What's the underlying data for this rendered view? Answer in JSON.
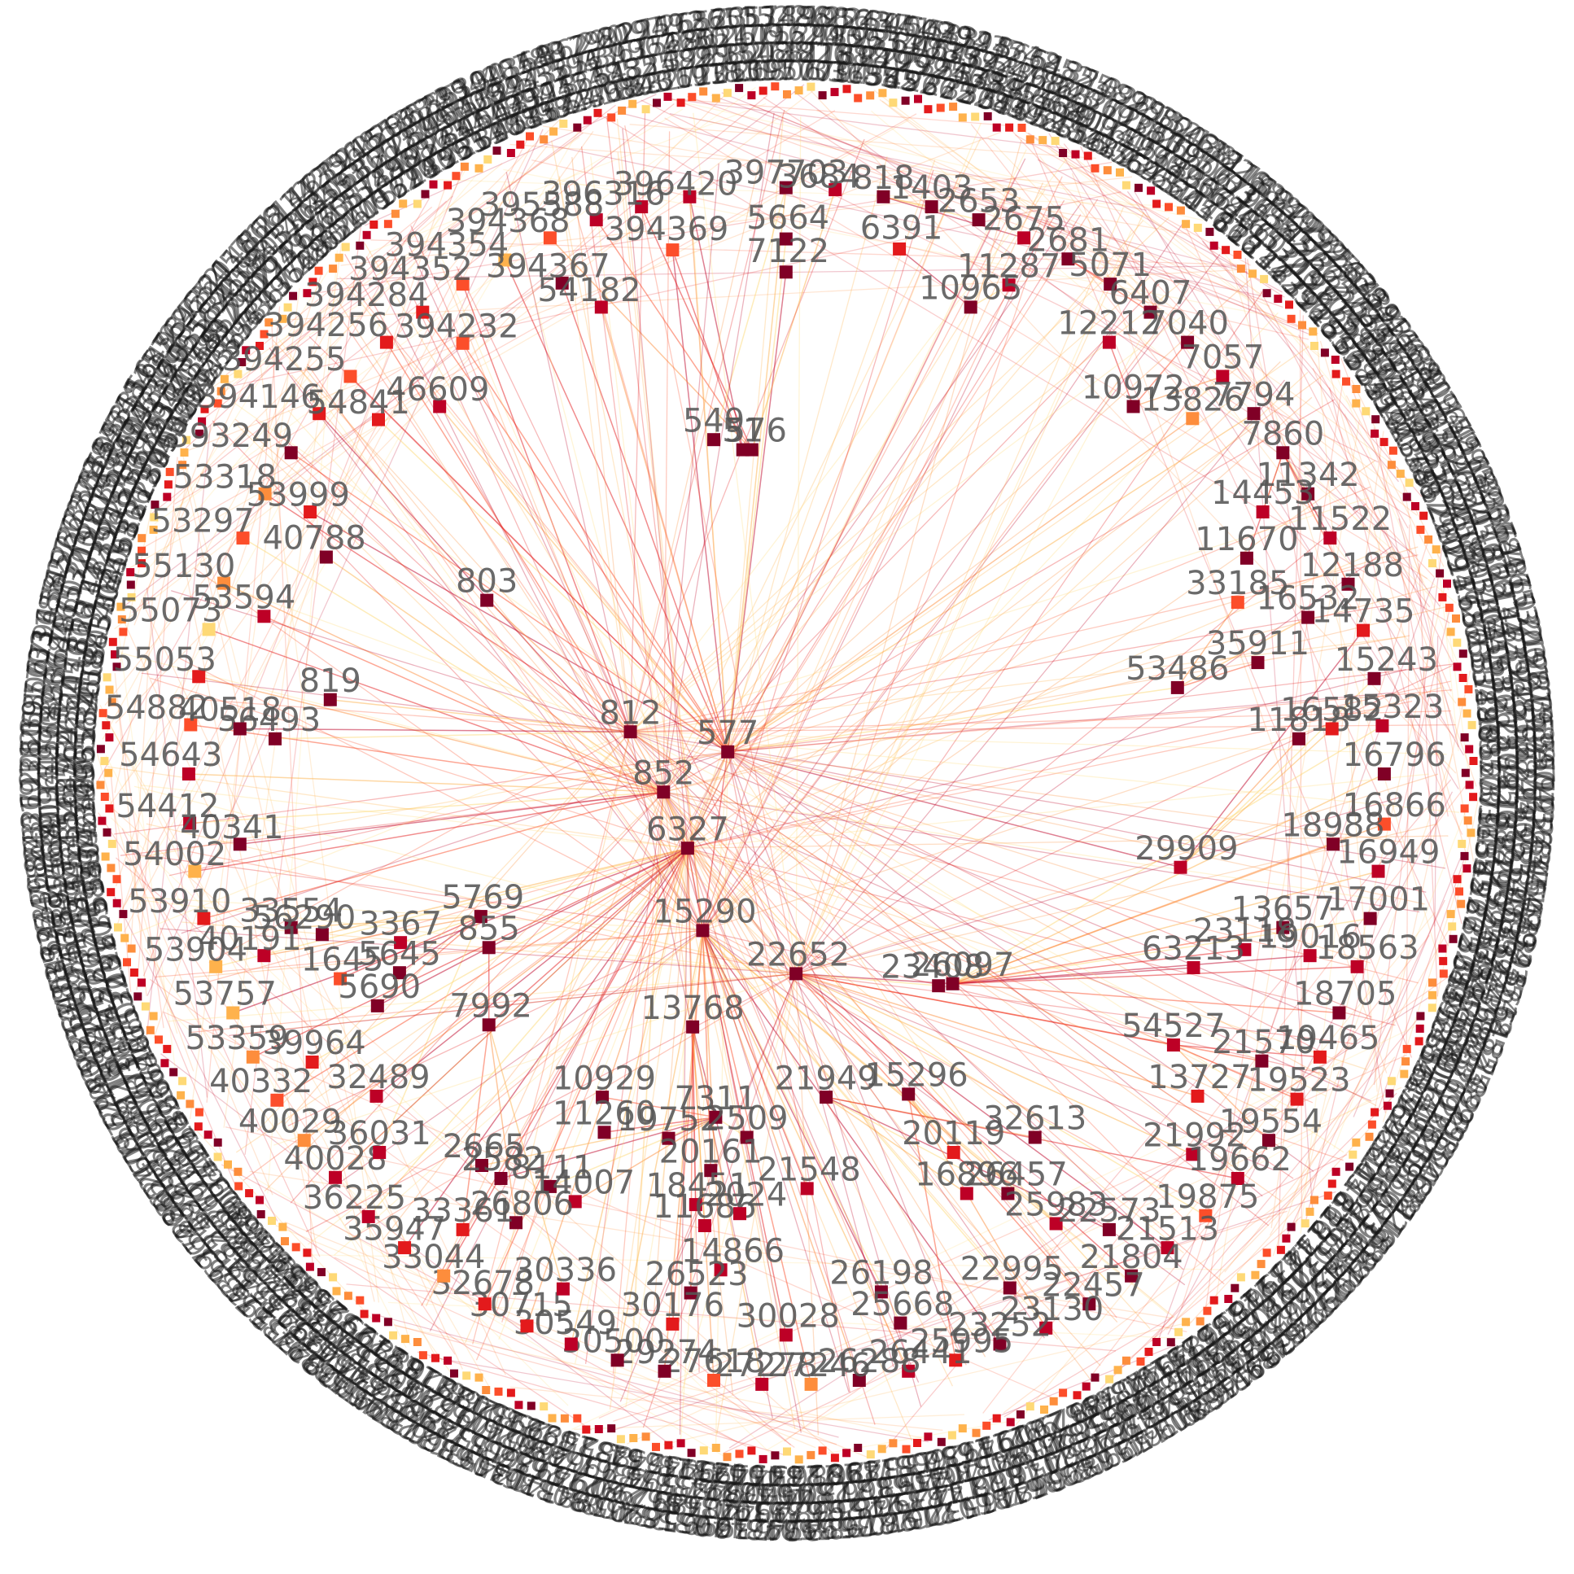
{
  "colors": {
    "node_scale": [
      "#800026",
      "#bd0026",
      "#e31a1c",
      "#fc4e2a",
      "#fd8d3c",
      "#feb24c",
      "#fed976"
    ],
    "edge_scale": [
      "#bd0026",
      "#e31a1c",
      "#fc4e2a",
      "#fd8d3c",
      "#feb24c",
      "#fed976"
    ],
    "label": "#555555",
    "ring_label": "#1a1a1a",
    "background": "#ffffff"
  },
  "layout_style": "radial-circle",
  "hubs": [
    "577",
    "852",
    "6327",
    "15290",
    "812",
    "22652"
  ],
  "nodes": [
    {
      "label": "397703",
      "shade": 0
    },
    {
      "label": "3684",
      "shade": 1
    },
    {
      "label": "818",
      "shade": 0
    },
    {
      "label": "1403",
      "shade": 0
    },
    {
      "label": "2653",
      "shade": 0
    },
    {
      "label": "2675",
      "shade": 1
    },
    {
      "label": "2681",
      "shade": 0
    },
    {
      "label": "5071",
      "shade": 0
    },
    {
      "label": "6407",
      "shade": 0
    },
    {
      "label": "12212",
      "shade": 1
    },
    {
      "label": "7040",
      "shade": 0
    },
    {
      "label": "7057",
      "shade": 1
    },
    {
      "label": "10972",
      "shade": 0
    },
    {
      "label": "13826",
      "shade": 4
    },
    {
      "label": "7794",
      "shade": 0
    },
    {
      "label": "7860",
      "shade": 0
    },
    {
      "label": "11342",
      "shade": 0
    },
    {
      "label": "14453",
      "shade": 1
    },
    {
      "label": "11522",
      "shade": 1
    },
    {
      "label": "11670",
      "shade": 0
    },
    {
      "label": "12188",
      "shade": 0
    },
    {
      "label": "33185",
      "shade": 3
    },
    {
      "label": "16532",
      "shade": 0
    },
    {
      "label": "14735",
      "shade": 2
    },
    {
      "label": "35911",
      "shade": 0
    },
    {
      "label": "53486",
      "shade": 0
    },
    {
      "label": "15243",
      "shade": 0
    },
    {
      "label": "11818",
      "shade": 0
    },
    {
      "label": "16582",
      "shade": 2
    },
    {
      "label": "15323",
      "shade": 1
    },
    {
      "label": "16796",
      "shade": 0
    },
    {
      "label": "16866",
      "shade": 3
    },
    {
      "label": "18988",
      "shade": 0
    },
    {
      "label": "29909",
      "shade": 1
    },
    {
      "label": "16949",
      "shade": 1
    },
    {
      "label": "13657",
      "shade": 0
    },
    {
      "label": "17001",
      "shade": 0
    },
    {
      "label": "23118",
      "shade": 1
    },
    {
      "label": "63213",
      "shade": 1
    },
    {
      "label": "19016",
      "shade": 1
    },
    {
      "label": "18563",
      "shade": 1
    },
    {
      "label": "18705",
      "shade": 0
    },
    {
      "label": "54527",
      "shade": 1
    },
    {
      "label": "21570",
      "shade": 0
    },
    {
      "label": "19465",
      "shade": 2
    },
    {
      "label": "13727",
      "shade": 2
    },
    {
      "label": "19523",
      "shade": 2
    },
    {
      "label": "19554",
      "shade": 0
    },
    {
      "label": "21992",
      "shade": 1
    },
    {
      "label": "19662",
      "shade": 1
    },
    {
      "label": "19875",
      "shade": 3
    },
    {
      "label": "21513",
      "shade": 1
    },
    {
      "label": "21804",
      "shade": 0
    },
    {
      "label": "22457",
      "shade": 0
    },
    {
      "label": "23130",
      "shade": 1
    },
    {
      "label": "22995",
      "shade": 0
    },
    {
      "label": "23252",
      "shade": 0
    },
    {
      "label": "26198",
      "shade": 0
    },
    {
      "label": "25668",
      "shade": 0
    },
    {
      "label": "25995",
      "shade": 2
    },
    {
      "label": "26441",
      "shade": 1
    },
    {
      "label": "26288",
      "shade": 0
    },
    {
      "label": "27246",
      "shade": 4
    },
    {
      "label": "27278",
      "shade": 1
    },
    {
      "label": "27618",
      "shade": 3
    },
    {
      "label": "29274",
      "shade": 0
    },
    {
      "label": "30500",
      "shade": 0
    },
    {
      "label": "30549",
      "shade": 1
    },
    {
      "label": "30715",
      "shade": 2
    },
    {
      "label": "32678",
      "shade": 2
    },
    {
      "label": "33044",
      "shade": 4
    },
    {
      "label": "35947",
      "shade": 2
    },
    {
      "label": "36225",
      "shade": 1
    },
    {
      "label": "40028",
      "shade": 1
    },
    {
      "label": "40029",
      "shade": 4
    },
    {
      "label": "40332",
      "shade": 3
    },
    {
      "label": "53359",
      "shade": 4
    },
    {
      "label": "53757",
      "shade": 5
    },
    {
      "label": "53904",
      "shade": 5
    },
    {
      "label": "53910",
      "shade": 2
    },
    {
      "label": "54002",
      "shade": 5
    },
    {
      "label": "54412",
      "shade": 1
    },
    {
      "label": "54643",
      "shade": 1
    },
    {
      "label": "54882",
      "shade": 3
    },
    {
      "label": "55053",
      "shade": 2
    },
    {
      "label": "55073",
      "shade": 6
    },
    {
      "label": "55130",
      "shade": 4
    },
    {
      "label": "53297",
      "shade": 3
    },
    {
      "label": "53318",
      "shade": 4
    },
    {
      "label": "393249",
      "shade": 0
    },
    {
      "label": "394146",
      "shade": 2
    },
    {
      "label": "394255",
      "shade": 3
    },
    {
      "label": "394256",
      "shade": 2
    },
    {
      "label": "394284",
      "shade": 2
    },
    {
      "label": "394352",
      "shade": 3
    },
    {
      "label": "394354",
      "shade": 5
    },
    {
      "label": "394368",
      "shade": 3
    },
    {
      "label": "395588",
      "shade": 1
    },
    {
      "label": "396316",
      "shade": 1
    },
    {
      "label": "396420",
      "shade": 1
    },
    {
      "label": "394369",
      "shade": 3
    },
    {
      "label": "394367",
      "shade": 0
    },
    {
      "label": "394232",
      "shade": 3
    },
    {
      "label": "54182",
      "shade": 1
    },
    {
      "label": "46609",
      "shade": 1
    },
    {
      "label": "54841",
      "shade": 2
    },
    {
      "label": "53999",
      "shade": 2
    },
    {
      "label": "40788",
      "shade": 0
    },
    {
      "label": "53594",
      "shade": 1
    },
    {
      "label": "5664",
      "shade": 0
    },
    {
      "label": "7122",
      "shade": 0
    },
    {
      "label": "6391",
      "shade": 2
    },
    {
      "label": "11287",
      "shade": 1
    },
    {
      "label": "10965",
      "shade": 0
    },
    {
      "label": "549",
      "shade": 0
    },
    {
      "label": "576",
      "shade": 0
    },
    {
      "label": "51",
      "shade": 0
    },
    {
      "label": "803",
      "shade": 0
    },
    {
      "label": "819",
      "shade": 0
    },
    {
      "label": "56493",
      "shade": 0
    },
    {
      "label": "40518",
      "shade": 0
    },
    {
      "label": "812",
      "shade": 0
    },
    {
      "label": "577",
      "shade": 0
    },
    {
      "label": "852",
      "shade": 0
    },
    {
      "label": "6327",
      "shade": 0
    },
    {
      "label": "40341",
      "shade": 0
    },
    {
      "label": "5769",
      "shade": 0
    },
    {
      "label": "33554",
      "shade": 0
    },
    {
      "label": "56290",
      "shade": 0
    },
    {
      "label": "3367",
      "shade": 1
    },
    {
      "label": "855",
      "shade": 0
    },
    {
      "label": "40191",
      "shade": 1
    },
    {
      "label": "1645",
      "shade": 3
    },
    {
      "label": "5645",
      "shade": 0
    },
    {
      "label": "5690",
      "shade": 0
    },
    {
      "label": "7992",
      "shade": 0
    },
    {
      "label": "39964",
      "shade": 2
    },
    {
      "label": "32489",
      "shade": 1
    },
    {
      "label": "36031",
      "shade": 1
    },
    {
      "label": "15290",
      "shade": 0
    },
    {
      "label": "22652",
      "shade": 0
    },
    {
      "label": "23408",
      "shade": 0
    },
    {
      "label": "26097",
      "shade": 0
    },
    {
      "label": "13768",
      "shade": 0
    },
    {
      "label": "10929",
      "shade": 0
    },
    {
      "label": "11260",
      "shade": 0
    },
    {
      "label": "19752",
      "shade": 0
    },
    {
      "label": "7311",
      "shade": 0
    },
    {
      "label": "2509",
      "shade": 0
    },
    {
      "label": "21949",
      "shade": 0
    },
    {
      "label": "15296",
      "shade": 0
    },
    {
      "label": "32613",
      "shade": 0
    },
    {
      "label": "20119",
      "shade": 2
    },
    {
      "label": "16896",
      "shade": 1
    },
    {
      "label": "26457",
      "shade": 0
    },
    {
      "label": "25983",
      "shade": 1
    },
    {
      "label": "22573",
      "shade": 0
    },
    {
      "label": "2665",
      "shade": 0
    },
    {
      "label": "2582",
      "shade": 0
    },
    {
      "label": "8111",
      "shade": 0
    },
    {
      "label": "14007",
      "shade": 1
    },
    {
      "label": "20161",
      "shade": 0
    },
    {
      "label": "18451",
      "shade": 1
    },
    {
      "label": "11686",
      "shade": 1
    },
    {
      "label": "2024",
      "shade": 1
    },
    {
      "label": "21548",
      "shade": 1
    },
    {
      "label": "26806",
      "shade": 0
    },
    {
      "label": "33361",
      "shade": 2
    },
    {
      "label": "14866",
      "shade": 1
    },
    {
      "label": "30336",
      "shade": 1
    },
    {
      "label": "26523",
      "shade": 0
    },
    {
      "label": "30176",
      "shade": 2
    },
    {
      "label": "30028",
      "shade": 1
    }
  ],
  "edges": [
    [
      "577",
      "394369"
    ],
    [
      "577",
      "394367"
    ],
    [
      "577",
      "394232"
    ],
    [
      "577",
      "54182"
    ],
    [
      "577",
      "46609"
    ],
    [
      "577",
      "54841"
    ],
    [
      "577",
      "53999"
    ],
    [
      "577",
      "394255"
    ],
    [
      "577",
      "393249"
    ],
    [
      "577",
      "396420"
    ],
    [
      "577",
      "397703"
    ],
    [
      "577",
      "5664"
    ],
    [
      "577",
      "7122"
    ],
    [
      "577",
      "394354"
    ],
    [
      "577",
      "394284"
    ],
    [
      "577",
      "13826"
    ],
    [
      "577",
      "7794"
    ],
    [
      "577",
      "53486"
    ],
    [
      "577",
      "29909"
    ],
    [
      "577",
      "15290"
    ],
    [
      "852",
      "53594"
    ],
    [
      "852",
      "55053"
    ],
    [
      "852",
      "54643"
    ],
    [
      "852",
      "54412"
    ],
    [
      "852",
      "40341"
    ],
    [
      "852",
      "54002"
    ],
    [
      "852",
      "53910"
    ],
    [
      "852",
      "55130"
    ],
    [
      "852",
      "40788"
    ],
    [
      "852",
      "53297"
    ],
    [
      "852",
      "394146"
    ],
    [
      "852",
      "55073"
    ],
    [
      "852",
      "54882"
    ],
    [
      "852",
      "812"
    ],
    [
      "852",
      "6327"
    ],
    [
      "6327",
      "53904"
    ],
    [
      "6327",
      "53757"
    ],
    [
      "6327",
      "53359"
    ],
    [
      "6327",
      "40332"
    ],
    [
      "6327",
      "40029"
    ],
    [
      "6327",
      "40028"
    ],
    [
      "6327",
      "36225"
    ],
    [
      "6327",
      "35947"
    ],
    [
      "6327",
      "33044"
    ],
    [
      "6327",
      "32678"
    ],
    [
      "6327",
      "30715"
    ],
    [
      "6327",
      "30549"
    ],
    [
      "6327",
      "5769"
    ],
    [
      "6327",
      "855"
    ],
    [
      "6327",
      "7992"
    ],
    [
      "6327",
      "15290"
    ],
    [
      "6327",
      "13768"
    ],
    [
      "6327",
      "56290"
    ],
    [
      "6327",
      "39964"
    ],
    [
      "6327",
      "32489"
    ],
    [
      "812",
      "394352"
    ],
    [
      "812",
      "394256"
    ],
    [
      "812",
      "803"
    ],
    [
      "812",
      "819"
    ],
    [
      "812",
      "56493"
    ],
    [
      "812",
      "40518"
    ],
    [
      "812",
      "53318"
    ],
    [
      "15290",
      "27246"
    ],
    [
      "15290",
      "26288"
    ],
    [
      "15290",
      "26441"
    ],
    [
      "15290",
      "25668"
    ],
    [
      "15290",
      "26198"
    ],
    [
      "15290",
      "30028"
    ],
    [
      "15290",
      "30176"
    ],
    [
      "15290",
      "29274"
    ],
    [
      "15290",
      "30500"
    ],
    [
      "15290",
      "22995"
    ],
    [
      "15290",
      "23252"
    ],
    [
      "15290",
      "21548"
    ],
    [
      "15290",
      "20161"
    ],
    [
      "15290",
      "14866"
    ],
    [
      "15290",
      "25983"
    ],
    [
      "22652",
      "23408"
    ],
    [
      "22652",
      "26097"
    ],
    [
      "22652",
      "54527"
    ],
    [
      "22652",
      "21570"
    ],
    [
      "22652",
      "13727"
    ],
    [
      "22652",
      "21992"
    ],
    [
      "22652",
      "19875"
    ],
    [
      "22652",
      "21513"
    ],
    [
      "22652",
      "21804"
    ],
    [
      "22652",
      "22457"
    ],
    [
      "26097",
      "18988"
    ],
    [
      "26097",
      "16949"
    ],
    [
      "26097",
      "17001"
    ],
    [
      "26097",
      "63213"
    ],
    [
      "26097",
      "18563"
    ],
    [
      "26097",
      "18705"
    ],
    [
      "26097",
      "16866"
    ],
    [
      "26097",
      "16796"
    ],
    [
      "26097",
      "15323"
    ],
    [
      "26097",
      "19016"
    ],
    [
      "26097",
      "23118"
    ],
    [
      "26097",
      "13657"
    ],
    [
      "21949",
      "32613"
    ],
    [
      "21949",
      "16896"
    ],
    [
      "21949",
      "26457"
    ],
    [
      "21949",
      "22573"
    ],
    [
      "21949",
      "19662"
    ],
    [
      "15296",
      "25995"
    ],
    [
      "15296",
      "23130"
    ],
    [
      "15296",
      "20119"
    ],
    [
      "13768",
      "11686"
    ],
    [
      "13768",
      "2024"
    ],
    [
      "13768",
      "18451"
    ],
    [
      "13768",
      "26523"
    ],
    [
      "13768",
      "27618"
    ],
    [
      "13768",
      "27278"
    ],
    [
      "7311",
      "2509"
    ],
    [
      "7311",
      "19752"
    ],
    [
      "7311",
      "11260"
    ],
    [
      "7311",
      "10929"
    ],
    [
      "7311",
      "14007"
    ],
    [
      "7311",
      "2665"
    ],
    [
      "7311",
      "8111"
    ],
    [
      "7311",
      "2582"
    ],
    [
      "576",
      "396316"
    ],
    [
      "576",
      "395588"
    ],
    [
      "576",
      "394368"
    ],
    [
      "576",
      "3684"
    ],
    [
      "549",
      "397703"
    ],
    [
      "51",
      "396420"
    ],
    [
      "51",
      "394369"
    ],
    [
      "7992",
      "33361"
    ],
    [
      "7992",
      "26806"
    ],
    [
      "7992",
      "30336"
    ],
    [
      "5769",
      "3367"
    ],
    [
      "5769",
      "5645"
    ],
    [
      "5769",
      "1645"
    ],
    [
      "5769",
      "5690"
    ],
    [
      "5769",
      "40191"
    ],
    [
      "5769",
      "33554"
    ],
    [
      "5769",
      "36031"
    ],
    [
      "855",
      "5690"
    ],
    [
      "855",
      "7992"
    ],
    [
      "53486",
      "35911"
    ],
    [
      "53486",
      "33185"
    ],
    [
      "53486",
      "16532"
    ],
    [
      "10965",
      "11287"
    ],
    [
      "10965",
      "6391"
    ],
    [
      "10972",
      "12212"
    ],
    [
      "10972",
      "7040"
    ],
    [
      "10972",
      "7057"
    ],
    [
      "7860",
      "11342"
    ],
    [
      "7860",
      "14453"
    ],
    [
      "7860",
      "11522"
    ],
    [
      "7860",
      "11670"
    ],
    [
      "7860",
      "12188"
    ],
    [
      "29909",
      "11818"
    ],
    [
      "29909",
      "16582"
    ],
    [
      "29909",
      "15243"
    ],
    [
      "29909",
      "14735"
    ],
    [
      "54527",
      "19465"
    ],
    [
      "54527",
      "19523"
    ],
    [
      "54527",
      "19554"
    ],
    [
      "818",
      "1403"
    ],
    [
      "818",
      "2653"
    ],
    [
      "818",
      "2675"
    ],
    [
      "2681",
      "5071"
    ],
    [
      "2681",
      "6407"
    ]
  ]
}
